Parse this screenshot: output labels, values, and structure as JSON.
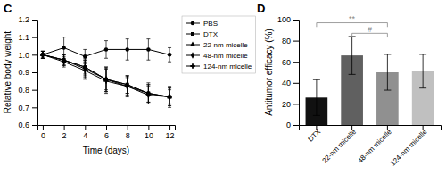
{
  "chart_data": [
    {
      "type": "line",
      "title": "C",
      "x": [
        0,
        2,
        4,
        6,
        8,
        10,
        12
      ],
      "series": [
        {
          "name": "PBS",
          "color": "#000000",
          "marker": "circle",
          "values": [
            1.0,
            1.04,
            0.99,
            1.03,
            1.03,
            1.03,
            1.0
          ],
          "errors": [
            0.02,
            0.06,
            0.04,
            0.05,
            0.06,
            0.06,
            0.04
          ]
        },
        {
          "name": "DTX",
          "color": "#000000",
          "marker": "square",
          "values": [
            1.0,
            0.97,
            0.93,
            0.86,
            0.83,
            0.78,
            0.76
          ],
          "errors": [
            0.02,
            0.03,
            0.04,
            0.07,
            0.05,
            0.05,
            0.04
          ]
        },
        {
          "name": "22-nm micelle",
          "color": "#000000",
          "marker": "triangle",
          "values": [
            1.0,
            0.97,
            0.93,
            0.86,
            0.83,
            0.78,
            0.76
          ],
          "errors": [
            0.02,
            0.03,
            0.05,
            0.07,
            0.05,
            0.06,
            0.05
          ]
        },
        {
          "name": "48-nm micelle",
          "color": "#000000",
          "marker": "diamond",
          "values": [
            1.0,
            0.97,
            0.92,
            0.86,
            0.82,
            0.77,
            0.76
          ],
          "errors": [
            0.02,
            0.03,
            0.05,
            0.06,
            0.05,
            0.05,
            0.05
          ]
        },
        {
          "name": "124-nm micelle",
          "color": "#000000",
          "marker": "plus",
          "values": [
            1.0,
            0.96,
            0.91,
            0.85,
            0.82,
            0.78,
            0.76
          ],
          "errors": [
            0.02,
            0.03,
            0.05,
            0.07,
            0.06,
            0.05,
            0.06
          ]
        }
      ],
      "xlabel": "Time (days)",
      "ylabel": "Relative body weight",
      "xlim": [
        -0.5,
        12.5
      ],
      "xticks": [
        0,
        2,
        4,
        6,
        8,
        10,
        12
      ],
      "ylim": [
        0.6,
        1.2
      ],
      "yticks": [
        0.6,
        0.7,
        0.8,
        0.9,
        {
          "value": 1.0,
          "label": "1.0"
        },
        1.1,
        1.2
      ],
      "legend": "right",
      "grid": false
    },
    {
      "type": "bar",
      "title": "D",
      "categories": [
        "DTX",
        "22-nm micelle",
        "48-nm micelle",
        "124-nm micelle"
      ],
      "values": [
        26,
        66,
        50,
        51
      ],
      "errors": [
        17,
        18,
        17,
        16
      ],
      "colors": [
        "#111111",
        "#606060",
        "#909090",
        "#c0c0c0"
      ],
      "ylabel": "Antitumor efficacy (%)",
      "ylim": [
        0,
        100
      ],
      "yticks": [
        0,
        20,
        40,
        60,
        80,
        100
      ],
      "grid": false,
      "annotations": [
        {
          "text": "**",
          "from": "DTX",
          "to": "48-nm micelle",
          "y": 93,
          "step": 4,
          "color": "#888888"
        },
        {
          "text": "#",
          "from": "22-nm micelle",
          "to": "48-nm micelle",
          "y": 83,
          "step": 4,
          "color": "#888888"
        }
      ]
    }
  ]
}
